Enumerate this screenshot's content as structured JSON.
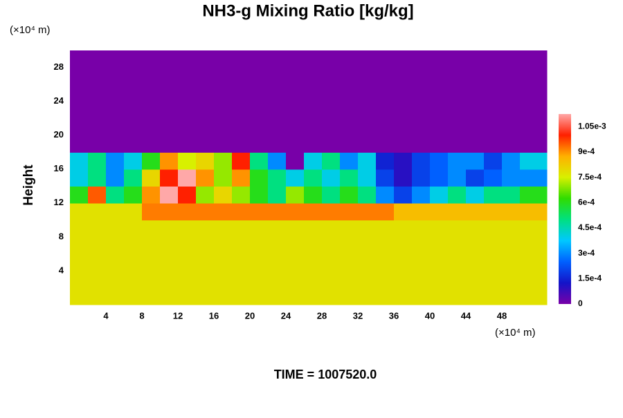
{
  "chart_data": {
    "type": "heatmap",
    "title": "NH3-g Mixing Ratio [kg/kg]",
    "ylabel": "Height",
    "x_unit": "(×10⁴ m)",
    "y_unit": "(×10⁴ m)",
    "footer": "TIME = 1007520.0",
    "x": [
      1,
      3,
      5,
      7,
      9,
      11,
      13,
      15,
      17,
      19,
      21,
      23,
      25,
      27,
      29,
      31,
      33,
      35,
      37,
      39,
      41,
      43,
      45,
      47,
      49,
      51
    ],
    "y": [
      1,
      3,
      5,
      7,
      9,
      11,
      13,
      15,
      17,
      19,
      21,
      23,
      25,
      27,
      29
    ],
    "z": [
      [
        0.00078,
        0.00078,
        0.00078,
        0.00078,
        0.00078,
        0.00078,
        0.00078,
        0.00078,
        0.00078,
        0.00078,
        0.00078,
        0.00078,
        0.00078,
        0.00078,
        0.00078,
        0.00078,
        0.00078,
        0.00078,
        0.00078,
        0.00078,
        0.00078,
        0.00078,
        0.00078,
        0.00078,
        0.00078,
        0.00078
      ],
      [
        0.00078,
        0.00078,
        0.00078,
        0.00078,
        0.00078,
        0.00078,
        0.00078,
        0.00078,
        0.00078,
        0.00078,
        0.00078,
        0.00078,
        0.00078,
        0.00078,
        0.00078,
        0.00078,
        0.00078,
        0.00078,
        0.00078,
        0.00078,
        0.00078,
        0.00078,
        0.00078,
        0.00078,
        0.00078,
        0.00078
      ],
      [
        0.00078,
        0.00078,
        0.00078,
        0.00078,
        0.00078,
        0.00078,
        0.00078,
        0.00078,
        0.00078,
        0.00078,
        0.00078,
        0.00078,
        0.00078,
        0.00078,
        0.00078,
        0.00078,
        0.00078,
        0.00078,
        0.00078,
        0.00078,
        0.00078,
        0.00078,
        0.00078,
        0.00078,
        0.00078,
        0.00078
      ],
      [
        0.00078,
        0.00078,
        0.00078,
        0.00078,
        0.00078,
        0.00078,
        0.00078,
        0.00078,
        0.00078,
        0.00078,
        0.00078,
        0.00078,
        0.00078,
        0.00078,
        0.00078,
        0.00078,
        0.00078,
        0.00078,
        0.00078,
        0.00078,
        0.00078,
        0.00078,
        0.00078,
        0.00078,
        0.00078,
        0.00078
      ],
      [
        0.00078,
        0.00078,
        0.00078,
        0.00078,
        0.00078,
        0.00078,
        0.00078,
        0.00078,
        0.00078,
        0.00078,
        0.00078,
        0.00078,
        0.00078,
        0.00078,
        0.00078,
        0.00078,
        0.00078,
        0.00078,
        0.00078,
        0.00078,
        0.00078,
        0.00078,
        0.00078,
        0.00078,
        0.00078,
        0.00078
      ],
      [
        0.00078,
        0.00078,
        0.00078,
        0.00078,
        0.00092,
        0.00092,
        0.00092,
        0.00092,
        0.00092,
        0.00092,
        0.00092,
        0.00092,
        0.00092,
        0.00092,
        0.00092,
        0.00092,
        0.00092,
        0.00092,
        0.00085,
        0.00085,
        0.00085,
        0.00085,
        0.00085,
        0.00085,
        0.00085,
        0.00085
      ],
      [
        0.0006,
        0.00095,
        0.0005,
        0.0006,
        0.0009,
        0.00115,
        0.001,
        0.0007,
        0.0008,
        0.0007,
        0.0006,
        0.0005,
        0.0007,
        0.0006,
        0.0005,
        0.0006,
        0.0005,
        0.0003,
        0.0002,
        0.0003,
        0.0004,
        0.0005,
        0.0004,
        0.0005,
        0.0005,
        0.0006
      ],
      [
        0.0004,
        0.0005,
        0.0003,
        0.0005,
        0.0008,
        0.001,
        0.00115,
        0.0009,
        0.0007,
        0.0009,
        0.0006,
        0.0005,
        0.0004,
        0.0005,
        0.0004,
        0.0005,
        0.0004,
        0.0002,
        0.0001,
        0.0002,
        0.00025,
        0.0003,
        0.0002,
        0.00025,
        0.0003,
        0.0003
      ],
      [
        0.0004,
        0.0005,
        0.0003,
        0.0004,
        0.0006,
        0.0009,
        0.00075,
        0.0008,
        0.0007,
        0.001,
        0.0005,
        0.0003,
        0,
        0.0004,
        0.0005,
        0.0003,
        0.0004,
        0.00015,
        0.0001,
        0.0002,
        0.00025,
        0.0003,
        0.0003,
        0.0002,
        0.0003,
        0.0004
      ],
      [
        0,
        0,
        0,
        0,
        0,
        0,
        0,
        0,
        0,
        0,
        0,
        0,
        0,
        0,
        0,
        0,
        0,
        0,
        0,
        0,
        0,
        0,
        0,
        0,
        0,
        0
      ],
      [
        0,
        0,
        0,
        0,
        0,
        0,
        0,
        0,
        0,
        0,
        0,
        0,
        0,
        0,
        0,
        0,
        0,
        0,
        0,
        0,
        0,
        0,
        0,
        0,
        0,
        0
      ],
      [
        0,
        0,
        0,
        0,
        0,
        0,
        0,
        0,
        0,
        0,
        0,
        0,
        0,
        0,
        0,
        0,
        0,
        0,
        0,
        0,
        0,
        0,
        0,
        0,
        0,
        0
      ],
      [
        0,
        0,
        0,
        0,
        0,
        0,
        0,
        0,
        0,
        0,
        0,
        0,
        0,
        0,
        0,
        0,
        0,
        0,
        0,
        0,
        0,
        0,
        0,
        0,
        0,
        0
      ],
      [
        0,
        0,
        0,
        0,
        0,
        0,
        0,
        0,
        0,
        0,
        0,
        0,
        0,
        0,
        0,
        0,
        0,
        0,
        0,
        0,
        0,
        0,
        0,
        0,
        0,
        0
      ],
      [
        0,
        0,
        0,
        0,
        0,
        0,
        0,
        0,
        0,
        0,
        0,
        0,
        0,
        0,
        0,
        0,
        0,
        0,
        0,
        0,
        0,
        0,
        0,
        0,
        0,
        0
      ]
    ],
    "xlim": [
      0,
      53
    ],
    "ylim": [
      0,
      30
    ],
    "xticks": [
      4,
      8,
      12,
      16,
      20,
      24,
      28,
      32,
      36,
      40,
      44,
      48
    ],
    "yticks": [
      4,
      8,
      12,
      16,
      20,
      24,
      28
    ],
    "colorbar": {
      "zlim": [
        0,
        0.001125
      ],
      "ticks": [
        0,
        {
          "value": 0.00015,
          "label": "1.5e-4"
        },
        {
          "value": 0.0003,
          "label": "3e-4"
        },
        {
          "value": 0.00045,
          "label": "4.5e-4"
        },
        {
          "value": 0.0006,
          "label": "6e-4"
        },
        {
          "value": 0.00075,
          "label": "7.5e-4"
        },
        {
          "value": 0.0009,
          "label": "9e-4"
        },
        {
          "value": 0.00105,
          "label": "1.05e-3"
        }
      ],
      "colormap": [
        "#7800a8",
        "#1414c8",
        "#0060ff",
        "#00c8ff",
        "#00e080",
        "#30dc00",
        "#d8f000",
        "#ffb000",
        "#ff2000",
        "#ffa8a8"
      ]
    }
  }
}
